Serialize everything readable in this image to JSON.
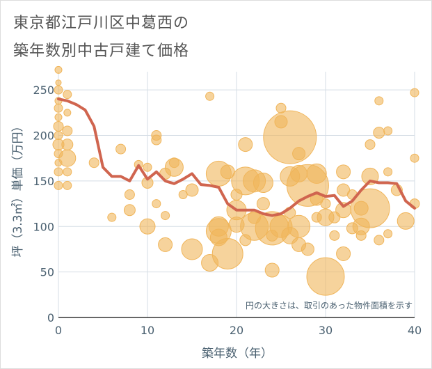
{
  "title_line1": "東京都江戸川区中葛西の",
  "title_line2": "築年数別中古戸建て価格",
  "chart_data": {
    "type": "scatter",
    "xlabel": "築年数（年）",
    "ylabel": "坪（3.3㎡）単価（万円）",
    "xlim": [
      0,
      40
    ],
    "ylim": [
      0,
      270
    ],
    "xticks": [
      0,
      10,
      20,
      30,
      40
    ],
    "yticks": [
      0,
      50,
      100,
      150,
      200,
      250
    ],
    "grid": true,
    "annotation": "円の大きさは、取引のあった物件面積を示す",
    "colors": {
      "bubble": "#f0b55a",
      "line": "#d0654f",
      "grid": "#d5dde5"
    },
    "scatter_points": [
      {
        "x": 0,
        "y": 272,
        "s": 5
      },
      {
        "x": 0,
        "y": 258,
        "s": 4
      },
      {
        "x": 0,
        "y": 250,
        "s": 6
      },
      {
        "x": 0,
        "y": 238,
        "s": 5
      },
      {
        "x": 0,
        "y": 230,
        "s": 6
      },
      {
        "x": 0,
        "y": 220,
        "s": 5
      },
      {
        "x": 0,
        "y": 210,
        "s": 7
      },
      {
        "x": 0,
        "y": 200,
        "s": 6
      },
      {
        "x": 0,
        "y": 190,
        "s": 8
      },
      {
        "x": 0,
        "y": 180,
        "s": 6
      },
      {
        "x": 0,
        "y": 170,
        "s": 5
      },
      {
        "x": 0,
        "y": 160,
        "s": 6
      },
      {
        "x": 0,
        "y": 145,
        "s": 6
      },
      {
        "x": 1,
        "y": 245,
        "s": 6
      },
      {
        "x": 1,
        "y": 225,
        "s": 5
      },
      {
        "x": 1,
        "y": 205,
        "s": 7
      },
      {
        "x": 1,
        "y": 190,
        "s": 8
      },
      {
        "x": 1,
        "y": 175,
        "s": 12
      },
      {
        "x": 1,
        "y": 160,
        "s": 6
      },
      {
        "x": 1,
        "y": 145,
        "s": 6
      },
      {
        "x": 4,
        "y": 170,
        "s": 7
      },
      {
        "x": 6,
        "y": 110,
        "s": 6
      },
      {
        "x": 7,
        "y": 185,
        "s": 7
      },
      {
        "x": 8,
        "y": 118,
        "s": 8
      },
      {
        "x": 8,
        "y": 135,
        "s": 7
      },
      {
        "x": 9,
        "y": 168,
        "s": 6
      },
      {
        "x": 10,
        "y": 100,
        "s": 11
      },
      {
        "x": 10,
        "y": 165,
        "s": 6
      },
      {
        "x": 10,
        "y": 148,
        "s": 8
      },
      {
        "x": 11,
        "y": 200,
        "s": 7
      },
      {
        "x": 11,
        "y": 195,
        "s": 7
      },
      {
        "x": 11,
        "y": 125,
        "s": 6
      },
      {
        "x": 12,
        "y": 112,
        "s": 6
      },
      {
        "x": 12,
        "y": 158,
        "s": 8
      },
      {
        "x": 12,
        "y": 80,
        "s": 10
      },
      {
        "x": 13,
        "y": 165,
        "s": 13
      },
      {
        "x": 13,
        "y": 170,
        "s": 7
      },
      {
        "x": 14,
        "y": 135,
        "s": 6
      },
      {
        "x": 15,
        "y": 75,
        "s": 15
      },
      {
        "x": 15,
        "y": 140,
        "s": 9
      },
      {
        "x": 17,
        "y": 243,
        "s": 6
      },
      {
        "x": 17,
        "y": 60,
        "s": 12
      },
      {
        "x": 18,
        "y": 158,
        "s": 18
      },
      {
        "x": 18,
        "y": 100,
        "s": 14
      },
      {
        "x": 18,
        "y": 95,
        "s": 18
      },
      {
        "x": 18,
        "y": 88,
        "s": 12
      },
      {
        "x": 19,
        "y": 70,
        "s": 22
      },
      {
        "x": 19,
        "y": 160,
        "s": 10
      },
      {
        "x": 20,
        "y": 135,
        "s": 8
      },
      {
        "x": 20,
        "y": 118,
        "s": 14
      },
      {
        "x": 20,
        "y": 102,
        "s": 11
      },
      {
        "x": 21,
        "y": 190,
        "s": 10
      },
      {
        "x": 21,
        "y": 150,
        "s": 20
      },
      {
        "x": 21,
        "y": 85,
        "s": 8
      },
      {
        "x": 22,
        "y": 150,
        "s": 16
      },
      {
        "x": 22,
        "y": 110,
        "s": 9
      },
      {
        "x": 22,
        "y": 100,
        "s": 20
      },
      {
        "x": 23,
        "y": 148,
        "s": 14
      },
      {
        "x": 23,
        "y": 125,
        "s": 9
      },
      {
        "x": 24,
        "y": 98,
        "s": 24
      },
      {
        "x": 24,
        "y": 52,
        "s": 10
      },
      {
        "x": 24,
        "y": 90,
        "s": 8
      },
      {
        "x": 25,
        "y": 230,
        "s": 7
      },
      {
        "x": 25,
        "y": 215,
        "s": 9
      },
      {
        "x": 25,
        "y": 100,
        "s": 16
      },
      {
        "x": 26,
        "y": 198,
        "s": 38
      },
      {
        "x": 26,
        "y": 155,
        "s": 14
      },
      {
        "x": 26,
        "y": 90,
        "s": 12
      },
      {
        "x": 26,
        "y": 115,
        "s": 8
      },
      {
        "x": 27,
        "y": 158,
        "s": 12
      },
      {
        "x": 27,
        "y": 180,
        "s": 9
      },
      {
        "x": 27,
        "y": 80,
        "s": 10
      },
      {
        "x": 27,
        "y": 100,
        "s": 16
      },
      {
        "x": 28,
        "y": 145,
        "s": 30
      },
      {
        "x": 28,
        "y": 75,
        "s": 9
      },
      {
        "x": 29,
        "y": 158,
        "s": 14
      },
      {
        "x": 29,
        "y": 130,
        "s": 9
      },
      {
        "x": 29,
        "y": 110,
        "s": 7
      },
      {
        "x": 30,
        "y": 45,
        "s": 27
      },
      {
        "x": 30,
        "y": 110,
        "s": 12
      },
      {
        "x": 30,
        "y": 125,
        "s": 7
      },
      {
        "x": 31,
        "y": 110,
        "s": 8
      },
      {
        "x": 31,
        "y": 90,
        "s": 7
      },
      {
        "x": 32,
        "y": 160,
        "s": 10
      },
      {
        "x": 32,
        "y": 140,
        "s": 9
      },
      {
        "x": 32,
        "y": 118,
        "s": 11
      },
      {
        "x": 32,
        "y": 70,
        "s": 10
      },
      {
        "x": 33,
        "y": 135,
        "s": 7
      },
      {
        "x": 33,
        "y": 98,
        "s": 8
      },
      {
        "x": 34,
        "y": 120,
        "s": 10
      },
      {
        "x": 34,
        "y": 100,
        "s": 12
      },
      {
        "x": 34,
        "y": 90,
        "s": 7
      },
      {
        "x": 35,
        "y": 155,
        "s": 12
      },
      {
        "x": 35,
        "y": 190,
        "s": 7
      },
      {
        "x": 35,
        "y": 120,
        "s": 28
      },
      {
        "x": 36,
        "y": 203,
        "s": 8
      },
      {
        "x": 36,
        "y": 238,
        "s": 6
      },
      {
        "x": 36,
        "y": 85,
        "s": 7
      },
      {
        "x": 37,
        "y": 205,
        "s": 6
      },
      {
        "x": 37,
        "y": 160,
        "s": 6
      },
      {
        "x": 37,
        "y": 92,
        "s": 6
      },
      {
        "x": 38,
        "y": 140,
        "s": 8
      },
      {
        "x": 39,
        "y": 106,
        "s": 12
      },
      {
        "x": 40,
        "y": 247,
        "s": 6
      },
      {
        "x": 40,
        "y": 175,
        "s": 6
      },
      {
        "x": 40,
        "y": 125,
        "s": 7
      }
    ],
    "line_points": [
      {
        "x": 0,
        "y": 240
      },
      {
        "x": 1,
        "y": 238
      },
      {
        "x": 2,
        "y": 234
      },
      {
        "x": 3,
        "y": 228
      },
      {
        "x": 4,
        "y": 210
      },
      {
        "x": 5,
        "y": 165
      },
      {
        "x": 6,
        "y": 155
      },
      {
        "x": 7,
        "y": 155
      },
      {
        "x": 8,
        "y": 150
      },
      {
        "x": 9,
        "y": 167
      },
      {
        "x": 10,
        "y": 152
      },
      {
        "x": 11,
        "y": 160
      },
      {
        "x": 12,
        "y": 150
      },
      {
        "x": 13,
        "y": 147
      },
      {
        "x": 14,
        "y": 152
      },
      {
        "x": 15,
        "y": 158
      },
      {
        "x": 16,
        "y": 146
      },
      {
        "x": 17,
        "y": 145
      },
      {
        "x": 18,
        "y": 143
      },
      {
        "x": 19,
        "y": 125
      },
      {
        "x": 20,
        "y": 118
      },
      {
        "x": 21,
        "y": 118
      },
      {
        "x": 22,
        "y": 118
      },
      {
        "x": 23,
        "y": 114
      },
      {
        "x": 24,
        "y": 112
      },
      {
        "x": 25,
        "y": 114
      },
      {
        "x": 26,
        "y": 120
      },
      {
        "x": 27,
        "y": 128
      },
      {
        "x": 28,
        "y": 133
      },
      {
        "x": 29,
        "y": 137
      },
      {
        "x": 30,
        "y": 133
      },
      {
        "x": 31,
        "y": 134
      },
      {
        "x": 32,
        "y": 122
      },
      {
        "x": 33,
        "y": 128
      },
      {
        "x": 34,
        "y": 140
      },
      {
        "x": 35,
        "y": 150
      },
      {
        "x": 36,
        "y": 148
      },
      {
        "x": 37,
        "y": 148
      },
      {
        "x": 38,
        "y": 147
      },
      {
        "x": 39,
        "y": 128
      },
      {
        "x": 40,
        "y": 120
      }
    ]
  }
}
